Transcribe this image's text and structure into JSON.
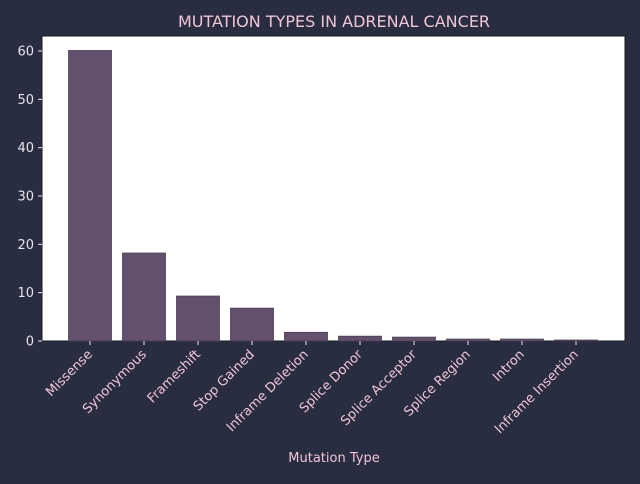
{
  "chart_data": {
    "type": "bar",
    "title": "MUTATION TYPES IN ADRENAL CANCER",
    "xlabel": "Mutation Type",
    "ylabel": "",
    "categories": [
      "Missense",
      "Synonymous",
      "Frameshift",
      "Stop Gained",
      "Inframe Deletion",
      "Splice Donor",
      "Splice Acceptor",
      "Splice Region",
      "Intron",
      "Inframe Insertion"
    ],
    "values": [
      60.1,
      18.2,
      9.3,
      6.8,
      1.8,
      1.0,
      0.8,
      0.4,
      0.4,
      0.2
    ],
    "ylim": [
      0,
      63.1
    ],
    "yticks": [
      0,
      10,
      20,
      30,
      40,
      50,
      60
    ],
    "grid": false,
    "legend": "none"
  },
  "colors": {
    "background": "#282d42",
    "plot_area": "#ffffff",
    "bar": "#63506f",
    "bar_edge": "#4d3d57",
    "text": "#f2c4d4",
    "tick_text": "#e8e2ea",
    "axis": "#1a1a1a"
  }
}
